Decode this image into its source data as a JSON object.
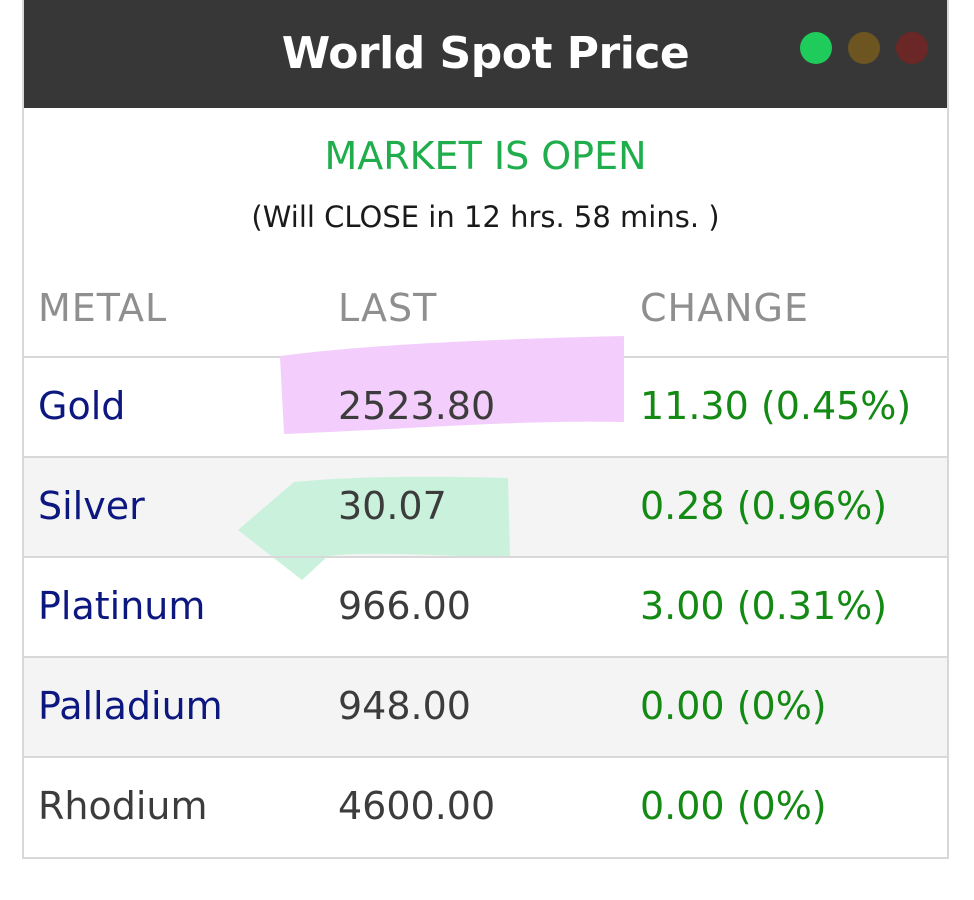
{
  "header": {
    "title": "World Spot Price",
    "dot_colors": [
      "#1fcb5a",
      "#6d5522",
      "#6b2626"
    ]
  },
  "status": {
    "label": "MARKET IS OPEN",
    "subtext": "(Will CLOSE in 12 hrs. 58 mins. )"
  },
  "columns": {
    "metal": "METAL",
    "last": "LAST",
    "change": "CHANGE"
  },
  "rows": [
    {
      "metal": "Gold",
      "last": "2523.80",
      "change": "11.30 (0.45%)"
    },
    {
      "metal": "Silver",
      "last": "30.07",
      "change": "0.28 (0.96%)"
    },
    {
      "metal": "Platinum",
      "last": "966.00",
      "change": "3.00 (0.31%)"
    },
    {
      "metal": "Palladium",
      "last": "948.00",
      "change": "0.00 (0%)"
    },
    {
      "metal": "Rhodium",
      "last": "4600.00",
      "change": "0.00 (0%)"
    }
  ],
  "highlights": {
    "gold_color": "#f3cdfb",
    "silver_color": "#c9f1dc"
  }
}
